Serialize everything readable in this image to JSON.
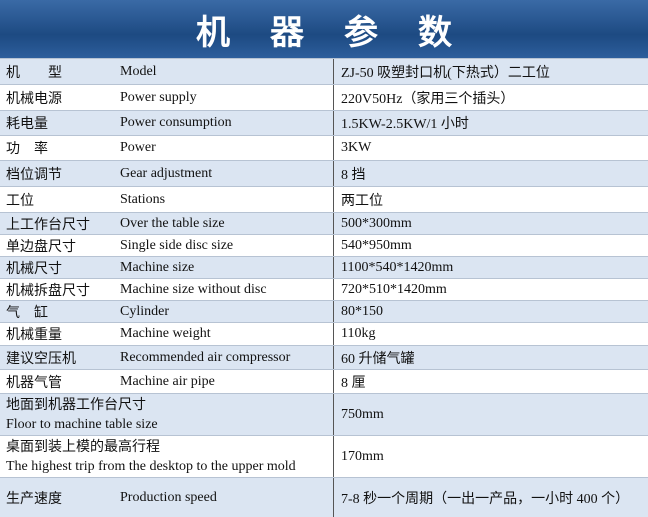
{
  "header": {
    "title": "机器参数"
  },
  "table": {
    "rows": [
      [
        "机　　型",
        "Model",
        "ZJ-50 吸塑封口机(下热式）二工位"
      ],
      [
        "机械电源",
        "Power supply",
        "220V50Hz（家用三个插头）"
      ],
      [
        "耗电量",
        "Power consumption",
        "1.5KW-2.5KW/1 小时"
      ],
      [
        "功　率",
        "Power",
        "3KW"
      ],
      [
        "档位调节",
        "Gear adjustment",
        "8 挡"
      ],
      [
        "工位",
        "Stations",
        "两工位"
      ],
      [
        "上工作台尺寸",
        "Over the table size",
        "500*300mm"
      ],
      [
        "单边盘尺寸",
        "Single side disc size",
        "540*950mm"
      ],
      [
        "机械尺寸",
        "Machine size",
        "1100*540*1420mm"
      ],
      [
        "机械拆盘尺寸",
        "Machine size without disc",
        "720*510*1420mm"
      ],
      [
        "气　缸",
        "Cylinder",
        "80*150"
      ],
      [
        "机械重量",
        "Machine weight",
        "110kg"
      ],
      [
        "建议空压机",
        "Recommended air compressor",
        "60 升储气罐"
      ],
      [
        "机器气管",
        "Machine air pipe",
        "8 厘"
      ],
      [
        "地面到机器工作台尺寸",
        "Floor to machine table size",
        "750mm"
      ],
      [
        "桌面到装上模的最高行程",
        "The highest trip from the desktop to the upper mold",
        "170mm"
      ],
      [
        "生产速度",
        "Production speed",
        "7-8 秒一个周期（一出一产品，一小时 400 个）"
      ]
    ]
  }
}
